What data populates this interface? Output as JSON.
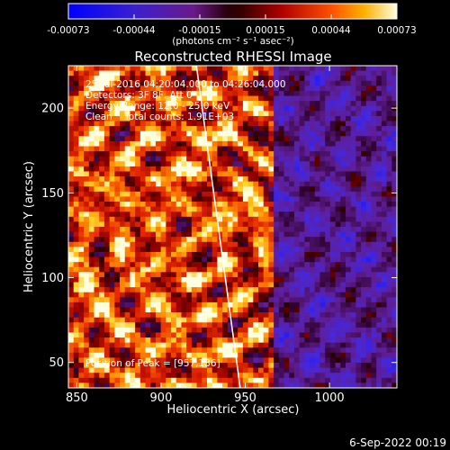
{
  "chart_data": {
    "type": "heatmap",
    "title": "Reconstructed RHESSI Image",
    "xlabel": "Heliocentric X (arcsec)",
    "ylabel": "Heliocentric Y (arcsec)",
    "xlim": [
      845,
      1040
    ],
    "ylim": [
      35,
      225
    ],
    "x_ticks": [
      850,
      900,
      950,
      1000
    ],
    "y_ticks": [
      50,
      100,
      150,
      200
    ],
    "colorbar": {
      "ticks": [
        "-0.00073",
        "-0.00044",
        "-0.00015",
        "0.00015",
        "0.00044",
        "0.00073"
      ],
      "range": [
        -0.00073,
        0.00073
      ],
      "unit_label": "(photons cm⁻² s⁻¹ asec⁻²)"
    },
    "annotations": [
      "25-Jul-2016 04:20:04.000 to 04:26:04.000",
      "Detectors: 3F 8F, Att 0",
      "Energy Range: 12.0 - 25.0 keV",
      "Clean    Total counts: 1.91E+03",
      "Position of Peak = [957,136]"
    ],
    "peak": [
      957,
      136
    ],
    "limb_line": [
      [
        921,
        225
      ],
      [
        947,
        35
      ]
    ],
    "footer": "6-Sep-2022 00:19"
  }
}
